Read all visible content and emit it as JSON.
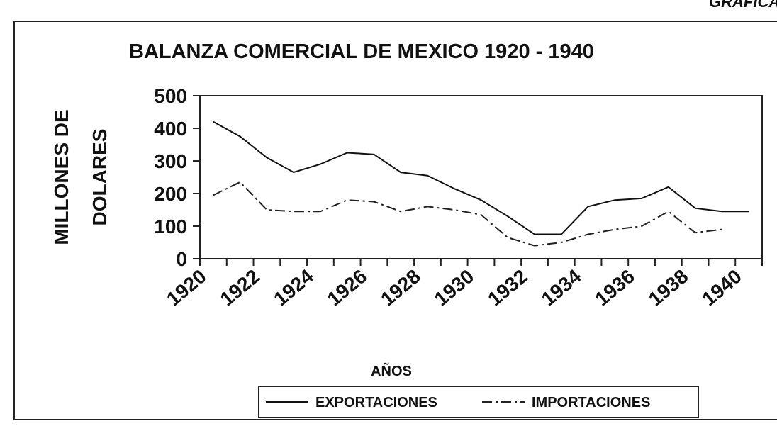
{
  "header": "GRAFICA",
  "chart_data": {
    "type": "line",
    "title": "BALANZA COMERCIAL DE MEXICO 1920 - 1940",
    "y_label": [
      "MILLONES DE",
      "DOLARES"
    ],
    "x_label": "AÑOS",
    "categories": [
      "1920",
      null,
      "1922",
      null,
      "1924",
      null,
      "1926",
      null,
      "1928",
      null,
      "1930",
      null,
      "1932",
      null,
      "1934",
      null,
      "1936",
      null,
      "1938",
      null,
      "1940"
    ],
    "series": [
      {
        "name": "EXPORTACIONES",
        "color": "#111111",
        "dash": "solid",
        "values": [
          420,
          375,
          310,
          265,
          290,
          325,
          320,
          265,
          255,
          215,
          180,
          130,
          75,
          75,
          160,
          180,
          185,
          220,
          155,
          145,
          145
        ]
      },
      {
        "name": "IMPORTACIONES",
        "color": "#222222",
        "dash": "dashdot",
        "values": [
          195,
          235,
          150,
          145,
          145,
          180,
          175,
          145,
          160,
          150,
          135,
          65,
          40,
          50,
          75,
          90,
          100,
          145,
          80,
          90,
          null
        ]
      }
    ],
    "ylim": [
      0,
      500
    ],
    "yticks": [
      0,
      100,
      200,
      300,
      400,
      500
    ],
    "grid": false,
    "legend": "bottom"
  }
}
